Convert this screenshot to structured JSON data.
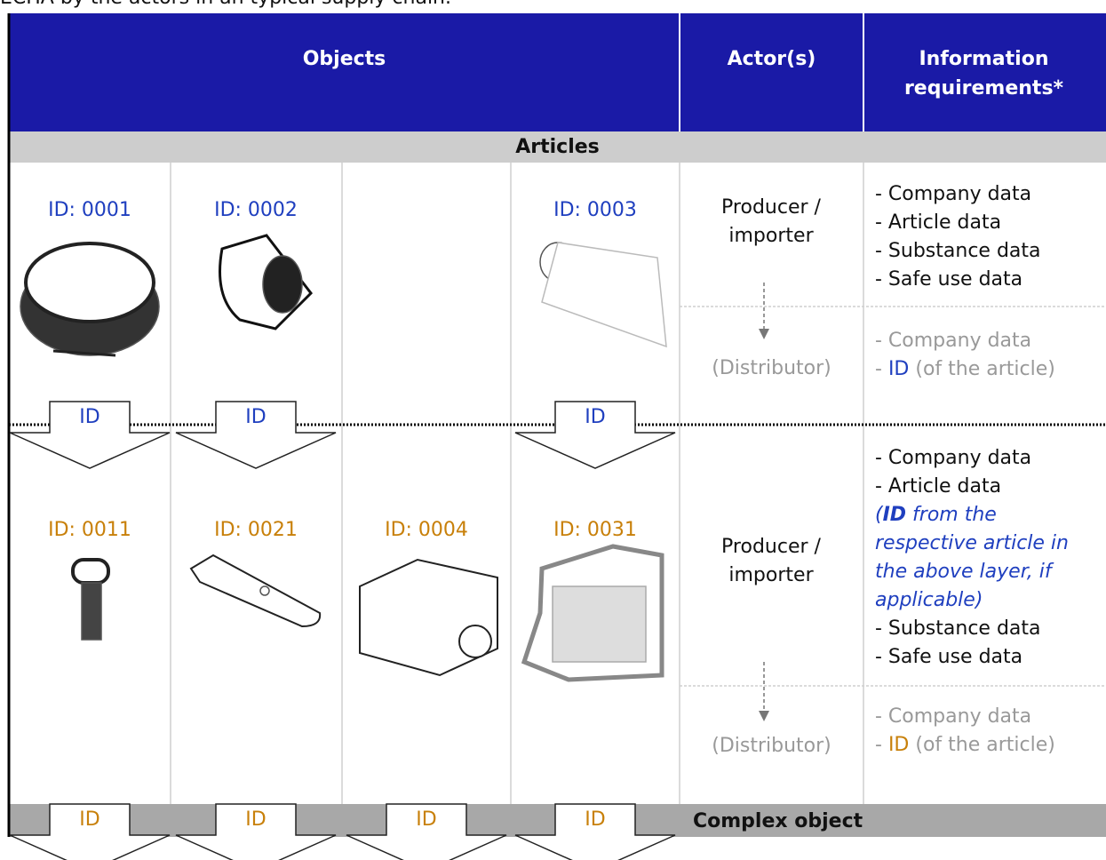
{
  "intro": "ECHA by the actors in an typical supply chain.",
  "table": {
    "headers": [
      "Objects",
      "Actor(s)",
      "Information requirements*"
    ],
    "sections": [
      "Articles",
      "Complex object"
    ],
    "layers": [
      {
        "color": "#1f3fbf",
        "objects": [
          "ID: 0001",
          "ID: 0002",
          "ID: 0003"
        ],
        "arrows": [
          "ID",
          "ID",
          "ID"
        ],
        "producer": "Producer / importer",
        "producer_info": [
          "- Company data",
          "- Article data",
          "- Substance data",
          "- Safe use data"
        ],
        "distributor": "(Distributor)",
        "distributor_info": [
          "- Company data",
          [
            "- ",
            "ID",
            " (of the article)"
          ]
        ]
      },
      {
        "color": "#c8800a",
        "objects": [
          "ID: 0011",
          "ID: 0021",
          "ID: 0004",
          "ID: 0031"
        ],
        "arrows": [
          "ID",
          "ID",
          "ID",
          "ID"
        ],
        "producer": "Producer / importer",
        "producer_info": [
          "- Company data",
          "- Article data",
          [
            "(",
            "ID",
            " from the respective article in the above layer, if applicable)"
          ],
          "- Substance data",
          "- Safe use data"
        ],
        "distributor": "(Distributor)",
        "distributor_info": [
          "- Company data",
          [
            "- ",
            "ID",
            " (of the article)"
          ]
        ]
      }
    ]
  }
}
